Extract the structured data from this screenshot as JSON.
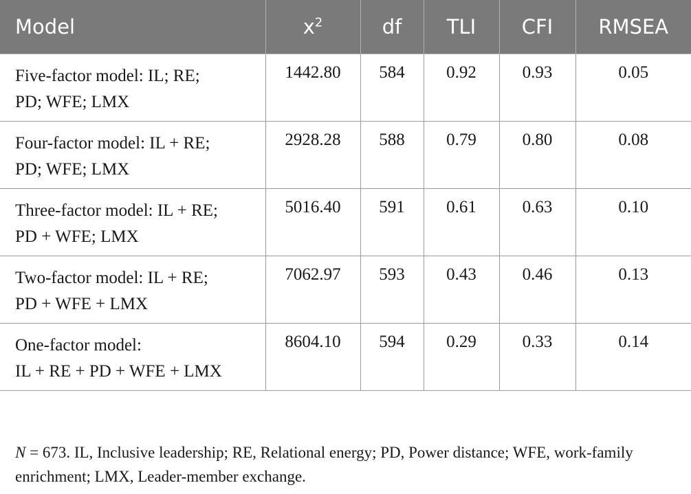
{
  "table": {
    "headers": {
      "model": "Model",
      "chi": "x",
      "chi_sup": "2",
      "df": "df",
      "tli": "TLI",
      "cfi": "CFI",
      "rmsea": "RMSEA"
    },
    "rows": [
      {
        "model_line1": "Five-factor model: IL; RE;",
        "model_line2": "PD; WFE; LMX",
        "chi": "1442.80",
        "df": "584",
        "tli": "0.92",
        "cfi": "0.93",
        "rmsea": "0.05"
      },
      {
        "model_line1": "Four-factor model: IL + RE;",
        "model_line2": "PD; WFE; LMX",
        "chi": "2928.28",
        "df": "588",
        "tli": "0.79",
        "cfi": "0.80",
        "rmsea": "0.08"
      },
      {
        "model_line1": "Three-factor model: IL + RE;",
        "model_line2": "PD + WFE; LMX",
        "chi": "5016.40",
        "df": "591",
        "tli": "0.61",
        "cfi": "0.63",
        "rmsea": "0.10"
      },
      {
        "model_line1": "Two-factor model: IL + RE;",
        "model_line2": "PD + WFE + LMX",
        "chi": "7062.97",
        "df": "593",
        "tli": "0.43",
        "cfi": "0.46",
        "rmsea": "0.13"
      },
      {
        "model_line1": "One-factor model:",
        "model_line2": "IL + RE + PD + WFE + LMX",
        "chi": "8604.10",
        "df": "594",
        "tli": "0.29",
        "cfi": "0.33",
        "rmsea": "0.14"
      }
    ]
  },
  "note": {
    "n_label": "N",
    "text": " = 673. IL, Inclusive leadership; RE, Relational energy; PD, Power distance; WFE, work-family enrichment; LMX, Leader-member exchange."
  }
}
